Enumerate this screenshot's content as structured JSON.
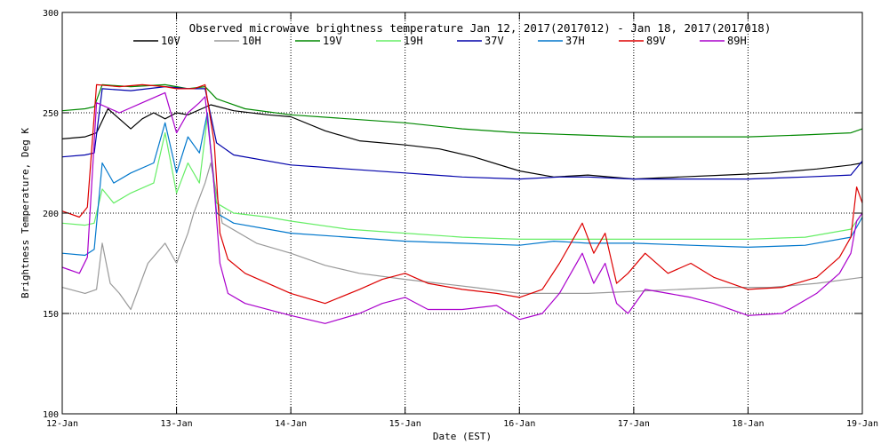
{
  "chart_data": {
    "type": "line",
    "title": "Observed microwave brightness temperature Jan 12, 2017(2017012) - Jan 18, 2017(2017018)",
    "xlabel": "Date (EST)",
    "ylabel": "Brightness Temperature, Deg K",
    "xlim": [
      12,
      19
    ],
    "ylim": [
      100,
      300
    ],
    "x_ticks": [
      {
        "value": 12,
        "label": "12-Jan"
      },
      {
        "value": 13,
        "label": "13-Jan"
      },
      {
        "value": 14,
        "label": "14-Jan"
      },
      {
        "value": 15,
        "label": "15-Jan"
      },
      {
        "value": 16,
        "label": "16-Jan"
      },
      {
        "value": 17,
        "label": "17-Jan"
      },
      {
        "value": 18,
        "label": "18-Jan"
      },
      {
        "value": 19,
        "label": "19-Jan"
      }
    ],
    "y_ticks": [
      {
        "value": 100,
        "label": "100"
      },
      {
        "value": 150,
        "label": "150"
      },
      {
        "value": 200,
        "label": "200"
      },
      {
        "value": 250,
        "label": "250"
      },
      {
        "value": 300,
        "label": "300"
      }
    ],
    "grid": true,
    "legend_position": "top",
    "series": [
      {
        "name": "10V",
        "color": "#000000",
        "x": [
          12.0,
          12.2,
          12.3,
          12.4,
          12.6,
          12.7,
          12.8,
          12.9,
          13.0,
          13.1,
          13.3,
          13.5,
          13.8,
          14.0,
          14.3,
          14.6,
          15.0,
          15.3,
          15.6,
          16.0,
          16.3,
          16.6,
          17.0,
          17.4,
          17.8,
          18.2,
          18.6,
          18.9,
          19.0
        ],
        "y": [
          237,
          238,
          240,
          252,
          242,
          247,
          250,
          247,
          250,
          249,
          254,
          251,
          249,
          248,
          241,
          236,
          234,
          232,
          228,
          221,
          218,
          219,
          217,
          218,
          219,
          220,
          222,
          224,
          225
        ]
      },
      {
        "name": "10H",
        "color": "#999999",
        "x": [
          12.0,
          12.2,
          12.3,
          12.35,
          12.42,
          12.5,
          12.6,
          12.75,
          12.9,
          13.0,
          13.1,
          13.15,
          13.25,
          13.3,
          13.4,
          13.7,
          14.0,
          14.3,
          14.6,
          15.0,
          15.3,
          15.6,
          16.0,
          16.3,
          16.6,
          17.0,
          17.4,
          17.8,
          18.2,
          18.6,
          19.0
        ],
        "y": [
          163,
          160,
          162,
          185,
          165,
          160,
          152,
          175,
          185,
          175,
          190,
          200,
          215,
          225,
          195,
          185,
          180,
          174,
          170,
          167,
          165,
          163,
          160,
          160,
          160,
          161,
          162,
          163,
          163,
          165,
          168
        ]
      },
      {
        "name": "19V",
        "color": "#008800",
        "x": [
          12.0,
          12.2,
          12.28,
          12.35,
          12.6,
          12.9,
          13.1,
          13.25,
          13.35,
          13.6,
          14.0,
          14.5,
          15.0,
          15.5,
          16.0,
          16.5,
          17.0,
          17.5,
          18.0,
          18.5,
          18.9,
          19.0
        ],
        "y": [
          251,
          252,
          253,
          264,
          263,
          264,
          262,
          263,
          257,
          252,
          249,
          247,
          245,
          242,
          240,
          239,
          238,
          238,
          238,
          239,
          240,
          242
        ]
      },
      {
        "name": "19H",
        "color": "#66ee66",
        "x": [
          12.0,
          12.2,
          12.28,
          12.35,
          12.45,
          12.6,
          12.8,
          12.9,
          13.0,
          13.1,
          13.2,
          13.27,
          13.35,
          13.5,
          13.8,
          14.0,
          14.5,
          15.0,
          15.5,
          16.0,
          16.5,
          17.0,
          17.5,
          18.0,
          18.5,
          18.9,
          19.0
        ],
        "y": [
          195,
          194,
          195,
          212,
          205,
          210,
          215,
          240,
          210,
          225,
          215,
          248,
          205,
          200,
          198,
          196,
          192,
          190,
          188,
          187,
          187,
          187,
          187,
          187,
          188,
          192,
          200
        ]
      },
      {
        "name": "37V",
        "color": "#0000aa",
        "x": [
          12.0,
          12.2,
          12.28,
          12.35,
          12.6,
          12.9,
          13.1,
          13.25,
          13.35,
          13.5,
          14.0,
          14.5,
          15.0,
          15.5,
          16.0,
          16.35,
          16.6,
          17.0,
          17.5,
          18.0,
          18.5,
          18.9,
          19.0
        ],
        "y": [
          228,
          229,
          230,
          262,
          261,
          263,
          262,
          262,
          235,
          229,
          224,
          222,
          220,
          218,
          217,
          218,
          218,
          217,
          217,
          217,
          218,
          219,
          226
        ]
      },
      {
        "name": "37H",
        "color": "#0077cc",
        "x": [
          12.0,
          12.2,
          12.28,
          12.35,
          12.45,
          12.6,
          12.8,
          12.9,
          13.0,
          13.1,
          13.2,
          13.27,
          13.35,
          13.5,
          14.0,
          14.5,
          15.0,
          15.5,
          16.0,
          16.3,
          16.6,
          17.0,
          17.5,
          18.0,
          18.5,
          18.9,
          19.0
        ],
        "y": [
          180,
          179,
          182,
          225,
          215,
          220,
          225,
          245,
          220,
          238,
          230,
          250,
          200,
          195,
          190,
          188,
          186,
          185,
          184,
          186,
          185,
          185,
          184,
          183,
          184,
          188,
          198
        ]
      },
      {
        "name": "89V",
        "color": "#dd0000",
        "x": [
          12.0,
          12.15,
          12.22,
          12.3,
          12.5,
          12.7,
          12.9,
          13.0,
          13.15,
          13.25,
          13.33,
          13.38,
          13.45,
          13.6,
          14.0,
          14.3,
          14.6,
          14.8,
          15.0,
          15.2,
          15.5,
          15.8,
          16.0,
          16.2,
          16.35,
          16.45,
          16.55,
          16.65,
          16.75,
          16.85,
          16.95,
          17.1,
          17.3,
          17.5,
          17.7,
          18.0,
          18.3,
          18.6,
          18.8,
          18.9,
          18.95,
          19.0
        ],
        "y": [
          201,
          198,
          203,
          264,
          263,
          264,
          263,
          262,
          262,
          264,
          235,
          190,
          177,
          170,
          160,
          155,
          162,
          167,
          170,
          165,
          162,
          160,
          158,
          162,
          175,
          185,
          195,
          180,
          190,
          165,
          170,
          180,
          170,
          175,
          168,
          162,
          163,
          168,
          178,
          188,
          213,
          205
        ]
      },
      {
        "name": "89H",
        "color": "#aa00cc",
        "x": [
          12.0,
          12.15,
          12.22,
          12.3,
          12.5,
          12.7,
          12.9,
          13.0,
          13.1,
          13.2,
          13.25,
          13.32,
          13.38,
          13.45,
          13.6,
          14.0,
          14.3,
          14.6,
          14.8,
          15.0,
          15.2,
          15.5,
          15.8,
          16.0,
          16.2,
          16.35,
          16.45,
          16.55,
          16.65,
          16.75,
          16.85,
          16.95,
          17.1,
          17.3,
          17.5,
          17.7,
          18.0,
          18.3,
          18.6,
          18.8,
          18.9,
          18.95,
          19.0
        ],
        "y": [
          173,
          170,
          178,
          255,
          250,
          255,
          260,
          240,
          250,
          255,
          258,
          220,
          175,
          160,
          155,
          149,
          145,
          150,
          155,
          158,
          152,
          152,
          154,
          147,
          150,
          160,
          170,
          180,
          165,
          175,
          155,
          150,
          162,
          160,
          158,
          155,
          149,
          150,
          160,
          170,
          180,
          196,
          200
        ]
      }
    ]
  }
}
